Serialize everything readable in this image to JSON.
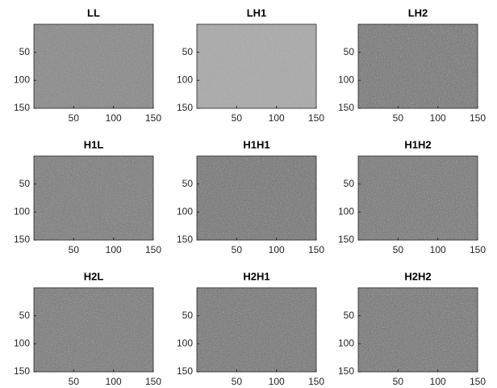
{
  "chart_data": [
    {
      "type": "image",
      "title": "LL",
      "color": "#8a8a8a",
      "xlim": [
        0,
        150
      ],
      "ylim": [
        0,
        150
      ],
      "y_reversed": true,
      "xticks": [
        50,
        100,
        150
      ],
      "yticks": [
        50,
        100,
        150
      ]
    },
    {
      "type": "image",
      "title": "LH1",
      "color": "#a9a9a9",
      "xlim": [
        0,
        150
      ],
      "ylim": [
        0,
        150
      ],
      "y_reversed": true,
      "xticks": [
        50,
        100,
        150
      ],
      "yticks": [
        50,
        100,
        150
      ]
    },
    {
      "type": "image",
      "title": "LH2",
      "color": "#7c7c7c",
      "xlim": [
        0,
        150
      ],
      "ylim": [
        0,
        150
      ],
      "y_reversed": true,
      "xticks": [
        50,
        100,
        150
      ],
      "yticks": [
        50,
        100,
        150
      ]
    },
    {
      "type": "image",
      "title": "H1L",
      "color": "#808080",
      "xlim": [
        0,
        150
      ],
      "ylim": [
        0,
        150
      ],
      "y_reversed": true,
      "xticks": [
        50,
        100,
        150
      ],
      "yticks": [
        50,
        100,
        150
      ]
    },
    {
      "type": "image",
      "title": "H1H1",
      "color": "#7a7a7a",
      "xlim": [
        0,
        150
      ],
      "ylim": [
        0,
        150
      ],
      "y_reversed": true,
      "xticks": [
        50,
        100,
        150
      ],
      "yticks": [
        50,
        100,
        150
      ]
    },
    {
      "type": "image",
      "title": "H1H2",
      "color": "#7d7d7d",
      "xlim": [
        0,
        150
      ],
      "ylim": [
        0,
        150
      ],
      "y_reversed": true,
      "xticks": [
        50,
        100,
        150
      ],
      "yticks": [
        50,
        100,
        150
      ]
    },
    {
      "type": "image",
      "title": "H2L",
      "color": "#7e7e7e",
      "xlim": [
        0,
        150
      ],
      "ylim": [
        0,
        150
      ],
      "y_reversed": true,
      "xticks": [
        50,
        100,
        150
      ],
      "yticks": [
        50,
        100,
        150
      ]
    },
    {
      "type": "image",
      "title": "H2H1",
      "color": "#7b7b7b",
      "xlim": [
        0,
        150
      ],
      "ylim": [
        0,
        150
      ],
      "y_reversed": true,
      "xticks": [
        50,
        100,
        150
      ],
      "yticks": [
        50,
        100,
        150
      ]
    },
    {
      "type": "image",
      "title": "H2H2",
      "color": "#7c7c7c",
      "xlim": [
        0,
        150
      ],
      "ylim": [
        0,
        150
      ],
      "y_reversed": true,
      "xticks": [
        50,
        100,
        150
      ],
      "yticks": [
        50,
        100,
        150
      ]
    }
  ]
}
